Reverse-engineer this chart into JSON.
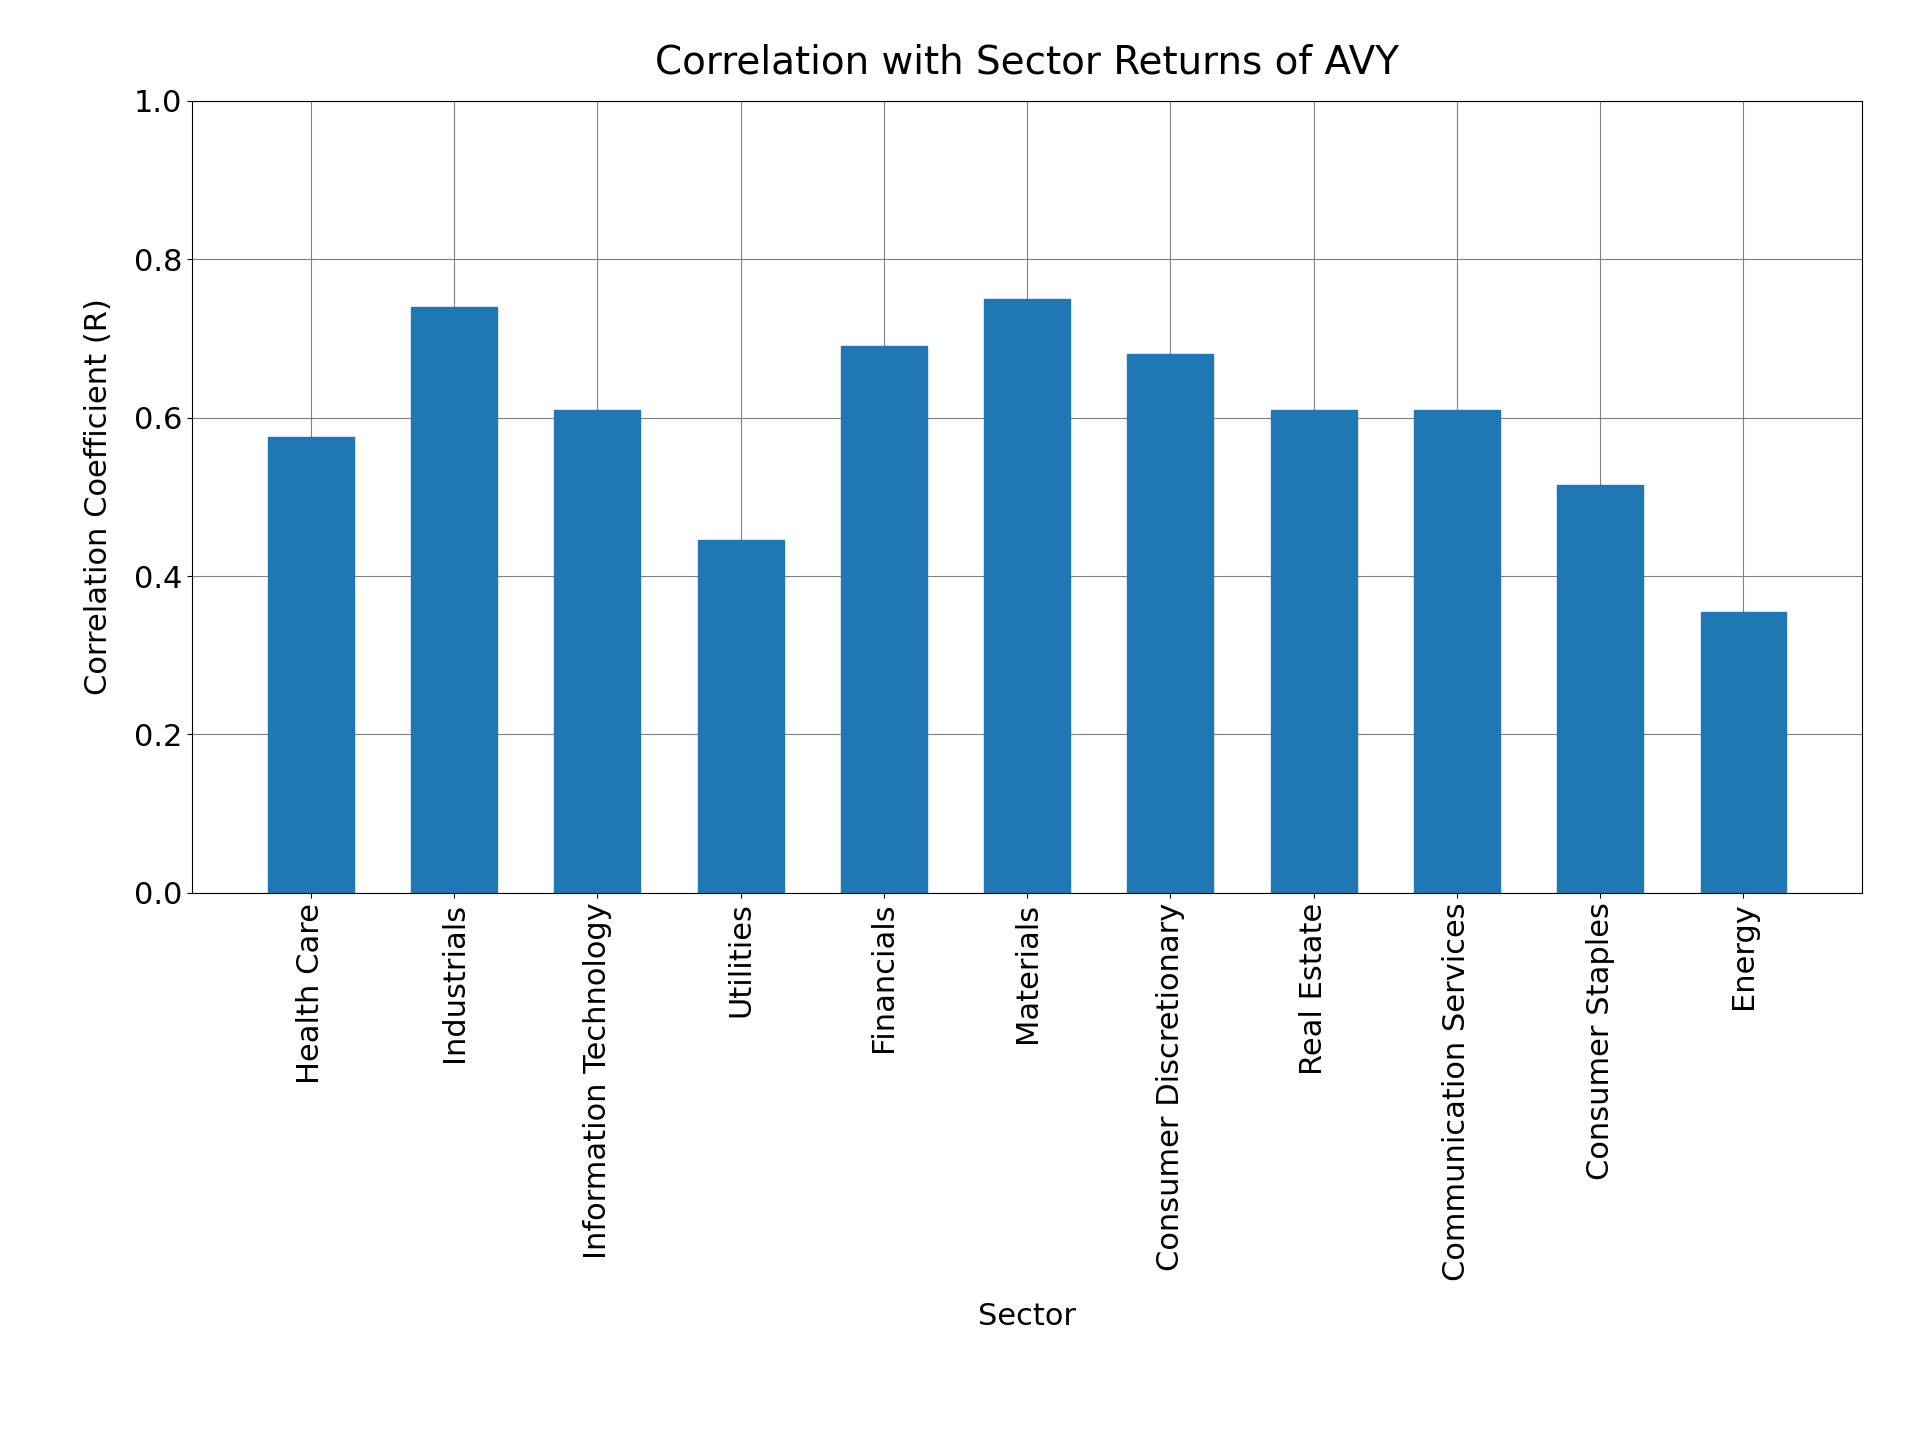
{
  "title": "Correlation with Sector Returns of AVY",
  "xlabel": "Sector",
  "ylabel": "Correlation Coefficient (R)",
  "categories": [
    "Health Care",
    "Industrials",
    "Information Technology",
    "Utilities",
    "Financials",
    "Materials",
    "Consumer Discretionary",
    "Real Estate",
    "Communication Services",
    "Consumer Staples",
    "Energy"
  ],
  "values": [
    0.575,
    0.74,
    0.61,
    0.445,
    0.69,
    0.75,
    0.68,
    0.61,
    0.61,
    0.515,
    0.355
  ],
  "bar_color": "#1f77b4",
  "ylim": [
    0.0,
    1.0
  ],
  "yticks": [
    0.0,
    0.2,
    0.4,
    0.6,
    0.8,
    1.0
  ],
  "title_fontsize": 28,
  "label_fontsize": 22,
  "tick_fontsize": 22,
  "bar_width": 0.6
}
